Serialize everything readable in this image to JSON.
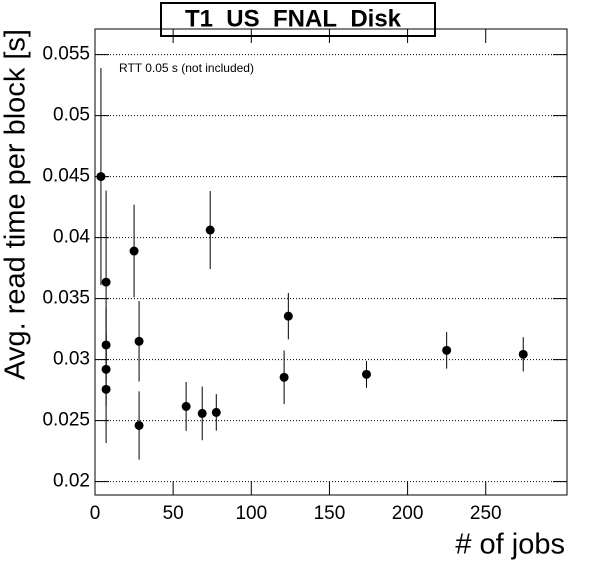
{
  "chart_data": {
    "type": "scatter",
    "title": "T1_US_FNAL_Disk",
    "annotation": "RTT 0.05 s (not included)",
    "x_label": "# of jobs",
    "y_label": "Avg. read time per block [s]",
    "x": [
      3.8,
      7.1,
      7.1,
      7.1,
      7.1,
      25,
      28.2,
      28.2,
      58.3,
      68.6,
      73.7,
      77.6,
      121,
      123.7,
      173.7,
      225,
      274
    ],
    "values": [
      0.045,
      0.03635,
      0.0312,
      0.0292,
      0.02756,
      0.0389,
      0.0315,
      0.0246,
      0.02616,
      0.02559,
      0.04062,
      0.02567,
      0.02855,
      0.03356,
      0.02879,
      0.03076,
      0.03043
    ],
    "errors": [
      0.0089,
      0.0075,
      0.003,
      0.003,
      0.0044,
      0.0038,
      0.0033,
      0.0028,
      0.002,
      0.0022,
      0.0032,
      0.0015,
      0.0022,
      0.0019,
      0.0011,
      0.0015,
      0.0014
    ],
    "color": "#000000",
    "xlim": [
      0,
      302
    ],
    "ylim": [
      0.0189,
      0.0571
    ],
    "xticks": [
      0,
      50,
      100,
      150,
      200,
      250
    ],
    "yticks": [
      0.02,
      0.025,
      0.03,
      0.035,
      0.04,
      0.045,
      0.05,
      0.055
    ],
    "grid": true
  }
}
